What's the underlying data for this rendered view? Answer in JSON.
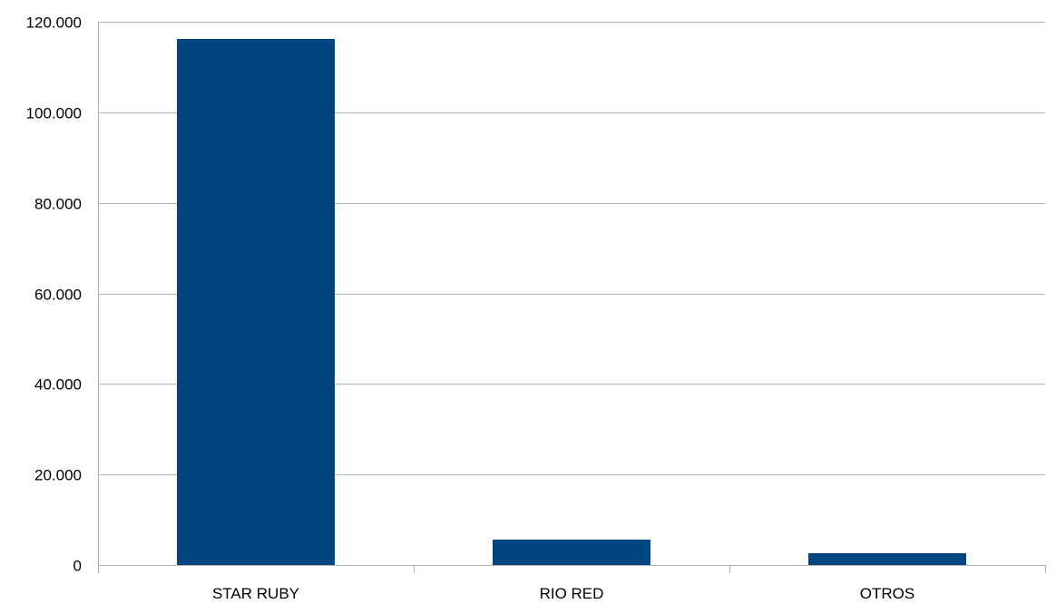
{
  "chart_data": {
    "type": "bar",
    "categories": [
      "STAR RUBY",
      "RIO RED",
      "OTROS"
    ],
    "values": [
      116200,
      5600,
      2600
    ],
    "ylim": [
      0,
      120000
    ],
    "yticks": [
      0,
      20000,
      40000,
      60000,
      80000,
      100000,
      120000
    ],
    "ytick_labels": [
      "0",
      "20.000",
      "40.000",
      "60.000",
      "80.000",
      "100.000",
      "120.000"
    ],
    "title": "",
    "xlabel": "",
    "ylabel": "",
    "grid": true,
    "legend": "none",
    "bar_color": "#00457f"
  }
}
